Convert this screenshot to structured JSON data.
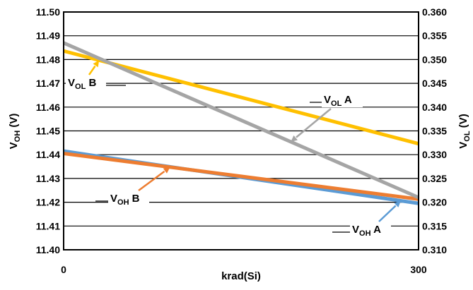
{
  "chart_data": {
    "type": "line",
    "x": [
      0,
      300
    ],
    "xlabel": "krad(Si)",
    "x_tick_labels": [
      "0",
      "300"
    ],
    "xlim": [
      0,
      300
    ],
    "ylabel_left": {
      "main": "V",
      "sub": "OH",
      "unit": " (V)"
    },
    "ylabel_right": {
      "main": "V",
      "sub": "OL",
      "unit": " (V)"
    },
    "ylim_left": [
      11.4,
      11.5
    ],
    "ylim_right": [
      0.31,
      0.36
    ],
    "y_left_ticks": [
      "11.40",
      "11.41",
      "11.42",
      "11.43",
      "11.44",
      "11.45",
      "11.46",
      "11.47",
      "11.48",
      "11.49",
      "11.50"
    ],
    "y_right_ticks": [
      "0.310",
      "0.315",
      "0.320",
      "0.325",
      "0.330",
      "0.335",
      "0.340",
      "0.345",
      "0.350",
      "0.355",
      "0.360"
    ],
    "grid": true,
    "series": [
      {
        "name": "VOH A",
        "axis": "left",
        "color": "#5b9bd5",
        "values": [
          11.4415,
          11.4195
        ]
      },
      {
        "name": "VOH B",
        "axis": "left",
        "color": "#ed7d31",
        "values": [
          11.4405,
          11.4213
        ]
      },
      {
        "name": "VOL A",
        "axis": "right",
        "color": "#a5a5a5",
        "values": [
          0.3535,
          0.321
        ]
      },
      {
        "name": "VOL B",
        "axis": "right",
        "color": "#ffc000",
        "values": [
          0.3518,
          0.3323
        ]
      }
    ],
    "annotations": [
      {
        "series": "VOL B",
        "main": "V",
        "sub": "OL",
        "suffix": " B"
      },
      {
        "series": "VOL A",
        "main": "V",
        "sub": "OL",
        "suffix": " A"
      },
      {
        "series": "VOH B",
        "main": "V",
        "sub": "OH",
        "suffix": " B"
      },
      {
        "series": "VOH A",
        "main": "V",
        "sub": "OH",
        "suffix": " A"
      }
    ]
  }
}
